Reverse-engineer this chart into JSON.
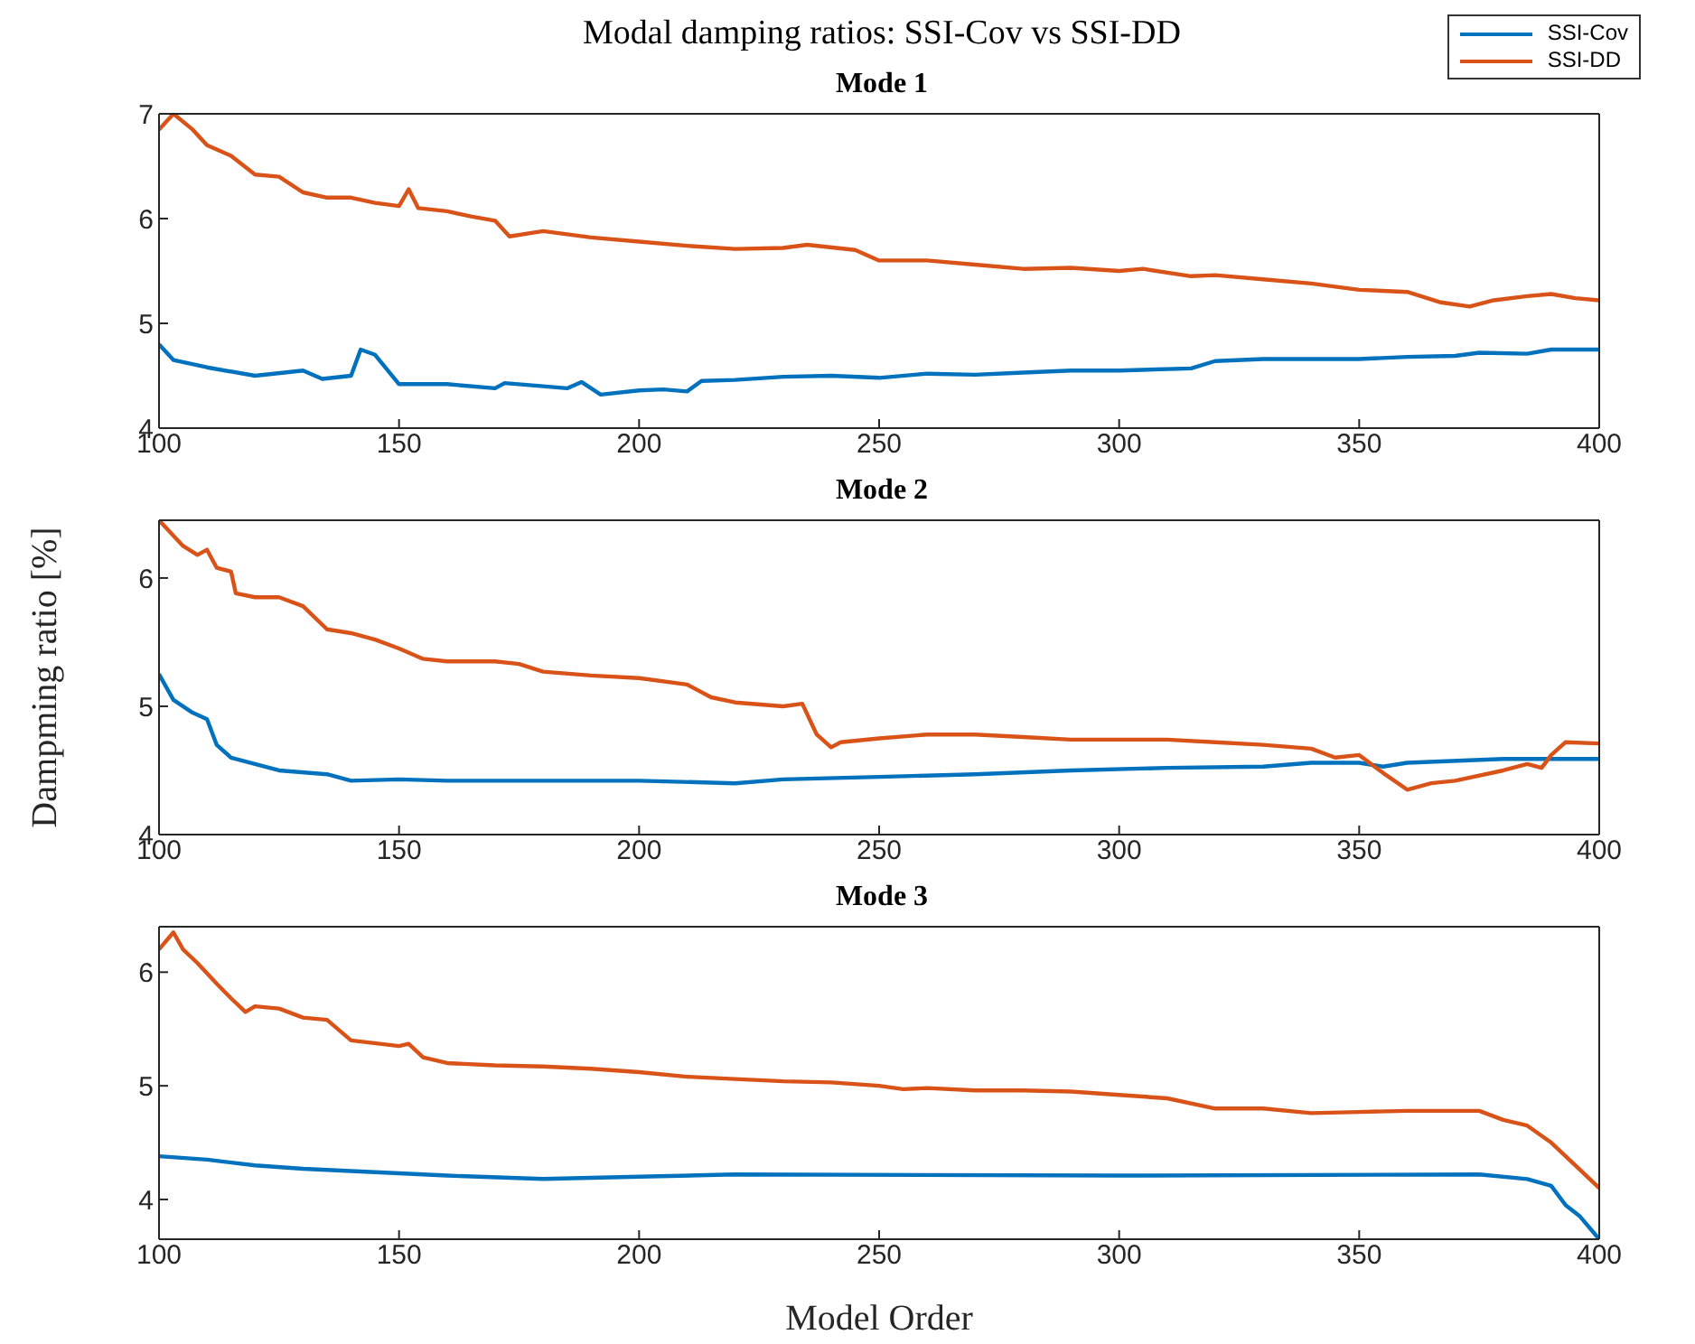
{
  "chart_data": [
    {
      "type": "line",
      "title": "Modal damping ratios: SSI-Cov vs SSI-DD",
      "subtitle": "Mode 1",
      "xlim": [
        100,
        400
      ],
      "xticks": [
        100,
        150,
        200,
        250,
        300,
        350,
        400
      ],
      "ylim": [
        4,
        7
      ],
      "yticks": [
        4,
        5,
        6,
        7
      ],
      "grid": false,
      "legend": "top right",
      "marker": "none",
      "line_style": "solid",
      "series": [
        {
          "name": "SSI-Cov",
          "color": "#0072bd",
          "x": [
            100,
            103,
            110,
            120,
            130,
            134,
            140,
            142,
            145,
            150,
            160,
            170,
            172,
            180,
            185,
            188,
            192,
            200,
            205,
            210,
            213,
            220,
            230,
            240,
            250,
            260,
            270,
            280,
            290,
            300,
            315,
            320,
            330,
            350,
            360,
            370,
            375,
            385,
            390,
            400
          ],
          "values": [
            4.8,
            4.65,
            4.58,
            4.5,
            4.55,
            4.47,
            4.5,
            4.75,
            4.7,
            4.42,
            4.42,
            4.38,
            4.43,
            4.4,
            4.38,
            4.44,
            4.32,
            4.36,
            4.37,
            4.35,
            4.45,
            4.46,
            4.49,
            4.5,
            4.48,
            4.52,
            4.51,
            4.53,
            4.55,
            4.55,
            4.57,
            4.64,
            4.66,
            4.66,
            4.68,
            4.69,
            4.72,
            4.71,
            4.75,
            4.75
          ]
        },
        {
          "name": "SSI-DD",
          "color": "#d95319",
          "x": [
            100,
            103,
            107,
            110,
            115,
            120,
            125,
            130,
            135,
            140,
            145,
            150,
            152,
            154,
            160,
            165,
            170,
            173,
            180,
            190,
            200,
            210,
            220,
            230,
            235,
            245,
            250,
            260,
            270,
            280,
            290,
            300,
            305,
            315,
            320,
            330,
            340,
            350,
            360,
            367,
            373,
            378,
            385,
            390,
            395,
            400
          ],
          "values": [
            6.85,
            7.0,
            6.85,
            6.7,
            6.6,
            6.42,
            6.4,
            6.25,
            6.2,
            6.2,
            6.15,
            6.12,
            6.28,
            6.1,
            6.07,
            6.02,
            5.98,
            5.83,
            5.88,
            5.82,
            5.78,
            5.74,
            5.71,
            5.72,
            5.75,
            5.7,
            5.6,
            5.6,
            5.56,
            5.52,
            5.53,
            5.5,
            5.52,
            5.45,
            5.46,
            5.42,
            5.38,
            5.32,
            5.3,
            5.2,
            5.16,
            5.22,
            5.26,
            5.28,
            5.24,
            5.22
          ]
        }
      ]
    },
    {
      "type": "line",
      "title": "Mode 2",
      "ylabel": "Dampming ratio [%]",
      "xlim": [
        100,
        400
      ],
      "xticks": [
        100,
        150,
        200,
        250,
        300,
        350,
        400
      ],
      "ylim": [
        4,
        6.45
      ],
      "yticks": [
        4,
        5,
        6
      ],
      "grid": false,
      "marker": "none",
      "line_style": "solid",
      "series": [
        {
          "color": "#0072bd",
          "x": [
            100,
            103,
            107,
            110,
            112,
            115,
            120,
            125,
            135,
            140,
            150,
            160,
            200,
            220,
            230,
            250,
            270,
            290,
            310,
            330,
            340,
            350,
            355,
            360,
            380,
            400
          ],
          "values": [
            5.25,
            5.05,
            4.95,
            4.9,
            4.7,
            4.6,
            4.55,
            4.5,
            4.47,
            4.42,
            4.43,
            4.42,
            4.42,
            4.4,
            4.43,
            4.45,
            4.47,
            4.5,
            4.52,
            4.53,
            4.56,
            4.56,
            4.53,
            4.56,
            4.59,
            4.59
          ]
        },
        {
          "color": "#d95319",
          "x": [
            100,
            105,
            108,
            110,
            112,
            115,
            116,
            120,
            125,
            130,
            135,
            140,
            145,
            150,
            155,
            160,
            170,
            175,
            180,
            190,
            200,
            210,
            215,
            220,
            230,
            234,
            237,
            240,
            242,
            250,
            260,
            270,
            280,
            290,
            300,
            310,
            320,
            330,
            340,
            345,
            350,
            355,
            360,
            365,
            370,
            380,
            385,
            388,
            390,
            393,
            400
          ],
          "values": [
            6.45,
            6.25,
            6.18,
            6.22,
            6.08,
            6.05,
            5.88,
            5.85,
            5.85,
            5.78,
            5.6,
            5.57,
            5.52,
            5.45,
            5.37,
            5.35,
            5.35,
            5.33,
            5.27,
            5.24,
            5.22,
            5.17,
            5.07,
            5.03,
            5.0,
            5.02,
            4.78,
            4.68,
            4.72,
            4.75,
            4.78,
            4.78,
            4.76,
            4.74,
            4.74,
            4.74,
            4.72,
            4.7,
            4.67,
            4.6,
            4.62,
            4.48,
            4.35,
            4.4,
            4.42,
            4.5,
            4.55,
            4.52,
            4.62,
            4.72,
            4.71
          ]
        }
      ]
    },
    {
      "type": "line",
      "title": "Mode 3",
      "xlabel": "Model Order",
      "xlim": [
        100,
        400
      ],
      "xticks": [
        100,
        150,
        200,
        250,
        300,
        350,
        400
      ],
      "ylim": [
        3.65,
        6.4
      ],
      "yticks": [
        4,
        5,
        6
      ],
      "grid": false,
      "marker": "none",
      "line_style": "solid",
      "series": [
        {
          "color": "#0072bd",
          "x": [
            100,
            110,
            120,
            130,
            150,
            160,
            180,
            200,
            220,
            300,
            375,
            385,
            390,
            393,
            396,
            400
          ],
          "values": [
            4.38,
            4.35,
            4.3,
            4.27,
            4.23,
            4.21,
            4.18,
            4.2,
            4.22,
            4.21,
            4.22,
            4.18,
            4.12,
            3.95,
            3.85,
            3.65
          ]
        },
        {
          "color": "#d95319",
          "x": [
            100,
            103,
            105,
            108,
            112,
            115,
            118,
            120,
            125,
            130,
            135,
            140,
            150,
            152,
            155,
            160,
            170,
            180,
            190,
            200,
            210,
            220,
            230,
            240,
            250,
            255,
            260,
            270,
            280,
            290,
            300,
            310,
            320,
            330,
            340,
            350,
            360,
            375,
            380,
            385,
            390,
            395,
            400
          ],
          "values": [
            6.2,
            6.35,
            6.2,
            6.08,
            5.9,
            5.77,
            5.65,
            5.7,
            5.68,
            5.6,
            5.58,
            5.4,
            5.35,
            5.37,
            5.25,
            5.2,
            5.18,
            5.17,
            5.15,
            5.12,
            5.08,
            5.06,
            5.04,
            5.03,
            5.0,
            4.97,
            4.98,
            4.96,
            4.96,
            4.95,
            4.92,
            4.89,
            4.8,
            4.8,
            4.76,
            4.77,
            4.78,
            4.78,
            4.7,
            4.65,
            4.5,
            4.3,
            4.1
          ]
        }
      ]
    }
  ]
}
